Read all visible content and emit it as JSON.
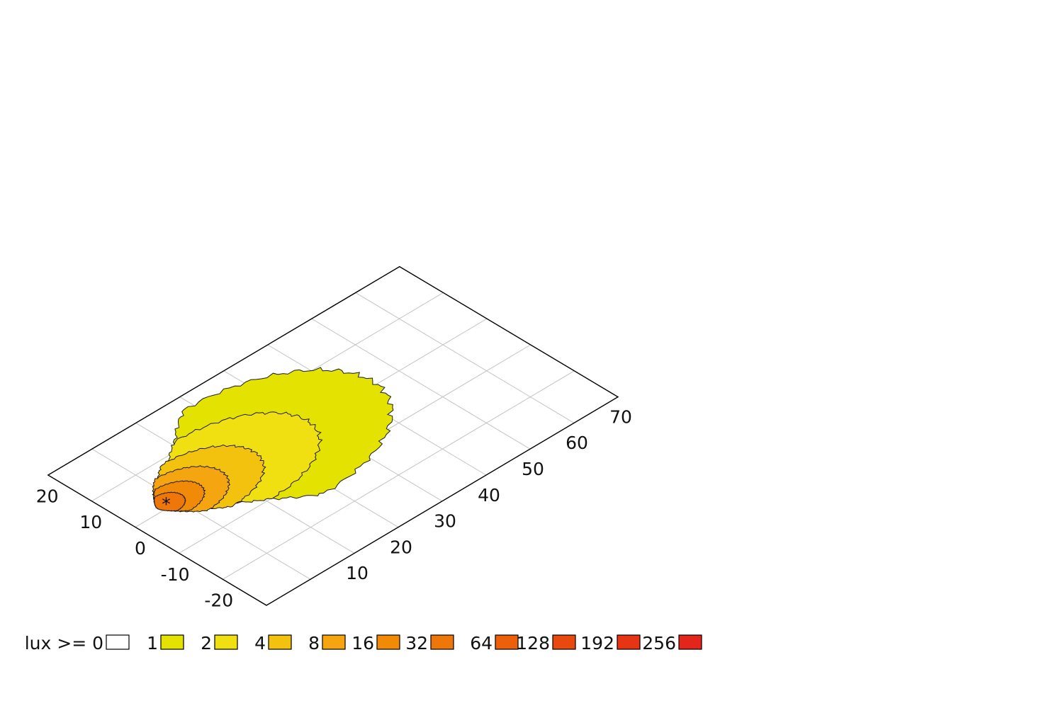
{
  "chart_data": {
    "type": "heatmap",
    "title": "",
    "xlabel": "",
    "ylabel": "",
    "x_ticks": [
      "10",
      "20",
      "30",
      "40",
      "50",
      "60",
      "70"
    ],
    "y_ticks": [
      "-20",
      "-10",
      "0",
      "10",
      "20"
    ],
    "xlim": [
      0,
      80
    ],
    "ylim": [
      -25,
      25
    ],
    "grid": true,
    "view": "isometric floor plan",
    "source_marker": {
      "x": 8,
      "y": 6,
      "symbol": "*"
    },
    "legend": {
      "position": "bottom",
      "prefix": "lux >= ",
      "levels": [
        {
          "value": "0",
          "color": "#ffffff"
        },
        {
          "value": "1",
          "color": "#e3e200"
        },
        {
          "value": "2",
          "color": "#f0e012"
        },
        {
          "value": "4",
          "color": "#f2c20f"
        },
        {
          "value": "8",
          "color": "#f5a50f"
        },
        {
          "value": "16",
          "color": "#f18b07"
        },
        {
          "value": "32",
          "color": "#ef7608"
        },
        {
          "value": "64",
          "color": "#ec5f0b"
        },
        {
          "value": "128",
          "color": "#e8490f"
        },
        {
          "value": "192",
          "color": "#e63414"
        },
        {
          "value": "256",
          "color": "#e4251b"
        }
      ]
    },
    "isolux_regions": [
      {
        "lux": 1,
        "center_x": 28,
        "center_y": 6,
        "half_x": 27,
        "half_y": 16
      },
      {
        "lux": 2,
        "center_x": 21,
        "center_y": 6,
        "half_x": 19,
        "half_y": 11
      },
      {
        "lux": 4,
        "center_x": 15,
        "center_y": 6,
        "half_x": 13,
        "half_y": 8
      },
      {
        "lux": 8,
        "center_x": 11.5,
        "center_y": 6,
        "half_x": 9,
        "half_y": 6
      },
      {
        "lux": 16,
        "center_x": 9.5,
        "center_y": 6,
        "half_x": 6,
        "half_y": 4
      },
      {
        "lux": 32,
        "center_x": 8,
        "center_y": 6,
        "half_x": 3.5,
        "half_y": 2.6
      }
    ]
  }
}
